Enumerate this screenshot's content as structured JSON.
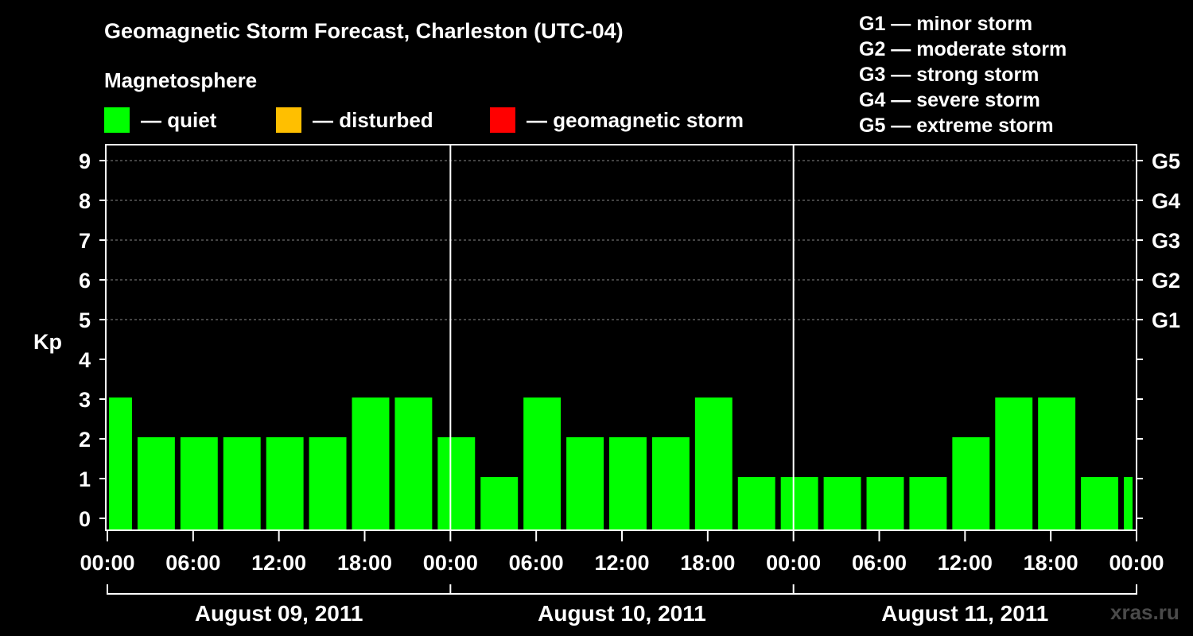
{
  "title": "Geomagnetic Storm Forecast, Charleston (UTC-04)",
  "legend": {
    "title": "Magnetosphere",
    "items": [
      {
        "label": "— quiet",
        "color": "#00ff00"
      },
      {
        "label": "— disturbed",
        "color": "#ffbf00"
      },
      {
        "label": "— geomagnetic storm",
        "color": "#ff0000"
      }
    ]
  },
  "g_scale": [
    "G1 — minor storm",
    "G2 — moderate storm",
    "G3 — strong storm",
    "G4 — severe storm",
    "G5 — extreme storm"
  ],
  "watermark": "xras.ru",
  "chart_data": {
    "type": "bar",
    "title": "Geomagnetic Storm Forecast, Charleston (UTC-04)",
    "ylabel": "Kp",
    "ylim": [
      0,
      9
    ],
    "y_ticks": [
      "0",
      "1",
      "2",
      "3",
      "4",
      "5",
      "6",
      "7",
      "8",
      "9"
    ],
    "right_ticks": [
      {
        "value": 5,
        "label": "G1"
      },
      {
        "value": 6,
        "label": "G2"
      },
      {
        "value": 7,
        "label": "G3"
      },
      {
        "value": 8,
        "label": "G4"
      },
      {
        "value": 9,
        "label": "G5"
      }
    ],
    "x_range_hours": [
      0,
      72
    ],
    "x_ticks": [
      {
        "hour": 0,
        "label": "00:00"
      },
      {
        "hour": 6,
        "label": "06:00"
      },
      {
        "hour": 12,
        "label": "12:00"
      },
      {
        "hour": 18,
        "label": "18:00"
      },
      {
        "hour": 24,
        "label": "00:00"
      },
      {
        "hour": 30,
        "label": "06:00"
      },
      {
        "hour": 36,
        "label": "12:00"
      },
      {
        "hour": 42,
        "label": "18:00"
      },
      {
        "hour": 48,
        "label": "00:00"
      },
      {
        "hour": 54,
        "label": "06:00"
      },
      {
        "hour": 60,
        "label": "12:00"
      },
      {
        "hour": 66,
        "label": "18:00"
      },
      {
        "hour": 72,
        "label": "00:00"
      }
    ],
    "days": [
      {
        "label": "August 09, 2011",
        "start_hour": 0
      },
      {
        "label": "August 10, 2011",
        "start_hour": 24
      },
      {
        "label": "August 11, 2011",
        "start_hour": 48
      }
    ],
    "bars": [
      {
        "start": 0,
        "end": 2,
        "kp": 3
      },
      {
        "start": 2,
        "end": 5,
        "kp": 2
      },
      {
        "start": 5,
        "end": 8,
        "kp": 2
      },
      {
        "start": 8,
        "end": 11,
        "kp": 2
      },
      {
        "start": 11,
        "end": 14,
        "kp": 2
      },
      {
        "start": 14,
        "end": 17,
        "kp": 2
      },
      {
        "start": 17,
        "end": 20,
        "kp": 3
      },
      {
        "start": 20,
        "end": 23,
        "kp": 3
      },
      {
        "start": 23,
        "end": 26,
        "kp": 2
      },
      {
        "start": 26,
        "end": 29,
        "kp": 1
      },
      {
        "start": 29,
        "end": 32,
        "kp": 3
      },
      {
        "start": 32,
        "end": 35,
        "kp": 2
      },
      {
        "start": 35,
        "end": 38,
        "kp": 2
      },
      {
        "start": 38,
        "end": 41,
        "kp": 2
      },
      {
        "start": 41,
        "end": 44,
        "kp": 3
      },
      {
        "start": 44,
        "end": 47,
        "kp": 1
      },
      {
        "start": 47,
        "end": 50,
        "kp": 1
      },
      {
        "start": 50,
        "end": 53,
        "kp": 1
      },
      {
        "start": 53,
        "end": 56,
        "kp": 1
      },
      {
        "start": 56,
        "end": 59,
        "kp": 1
      },
      {
        "start": 59,
        "end": 62,
        "kp": 2
      },
      {
        "start": 62,
        "end": 65,
        "kp": 3
      },
      {
        "start": 65,
        "end": 68,
        "kp": 3
      },
      {
        "start": 68,
        "end": 71,
        "kp": 1
      },
      {
        "start": 71,
        "end": 72,
        "kp": 1
      }
    ]
  }
}
